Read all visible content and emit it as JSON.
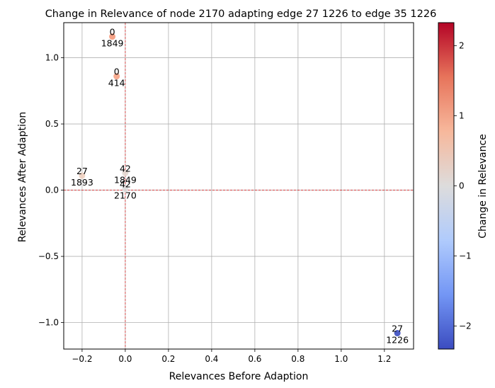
{
  "chart_data": {
    "type": "scatter",
    "title": "Change in Relevance of node 2170 adapting edge   27  1226 to edge 35  1226",
    "xlabel": "Relevances Before Adaption",
    "ylabel": "Relevances After Adaption",
    "xlim": [
      -0.285,
      1.335
    ],
    "ylim": [
      -1.2,
      1.265
    ],
    "xticks": [
      -0.2,
      0.0,
      0.2,
      0.4,
      0.6,
      0.8,
      1.0,
      1.2
    ],
    "xtick_labels": [
      "−0.2",
      "0.0",
      "0.2",
      "0.4",
      "0.6",
      "0.8",
      "1.0",
      "1.2"
    ],
    "yticks": [
      -1.0,
      -0.5,
      0.0,
      0.5,
      1.0
    ],
    "ytick_labels": [
      "−1.0",
      "−0.5",
      "0.0",
      "0.5",
      "1.0"
    ],
    "grid": true,
    "reference_lines": {
      "x": 0,
      "y": 0,
      "color": "#d62728",
      "style": "dashed"
    },
    "colorbar": {
      "label": "Change in Relevance",
      "range": [
        -2.33,
        2.33
      ],
      "ticks": [
        -2,
        -1,
        0,
        1,
        2
      ],
      "tick_labels": [
        "−2",
        "−1",
        "0",
        "1",
        "2"
      ],
      "colormap": "coolwarm",
      "colors": [
        "#3b4cc0",
        "#7396f5",
        "#b0cbfc",
        "#dddcdc",
        "#f7b89c",
        "#e7745b",
        "#b40426"
      ]
    },
    "points": [
      {
        "x": -0.06,
        "y": 1.16,
        "change": 1.22,
        "label_top": "0",
        "label_bottom": "1849",
        "color": "#f4987a"
      },
      {
        "x": -0.04,
        "y": 0.86,
        "change": 0.9,
        "label_top": "0",
        "label_bottom": "414",
        "color": "#f6a385"
      },
      {
        "x": -0.2,
        "y": 0.11,
        "change": 0.31,
        "label_top": "27",
        "label_bottom": "1893",
        "color": "#eed0c0"
      },
      {
        "x": 0.0,
        "y": 0.13,
        "change": 0.13,
        "label_top": "42",
        "label_bottom": "1849",
        "color": "#e4d9d2"
      },
      {
        "x": 0.0,
        "y": 0.01,
        "change": 0.01,
        "label_top": "42",
        "label_bottom": "2170",
        "color": "#dddcdc"
      },
      {
        "x": 1.26,
        "y": -1.08,
        "change": -2.34,
        "label_top": "27",
        "label_bottom": "1226",
        "color": "#3b4cc0"
      }
    ]
  }
}
